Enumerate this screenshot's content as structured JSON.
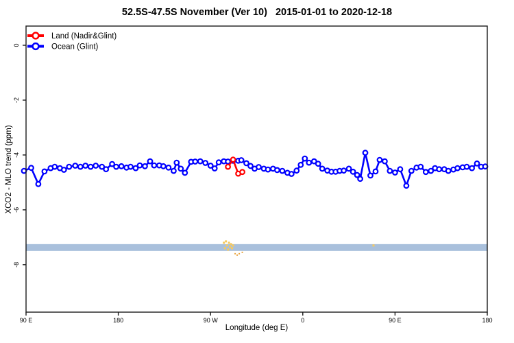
{
  "chart_data": {
    "type": "line",
    "title": "52.5S-47.5S November (Ver 10)   2015-01-01 to 2020-12-18",
    "xlabel": "Longitude (deg E)",
    "ylabel": "XCO2 - MLO trend (ppm)",
    "grid": "off",
    "frame": "full-box",
    "frame_color": "#1a1a1a",
    "x_axis": {
      "min": 90,
      "max": 540,
      "ticks": [
        {
          "deg": 90,
          "label": "90 E"
        },
        {
          "deg": 180,
          "label": "180"
        },
        {
          "deg": 270,
          "label": "90 W"
        },
        {
          "deg": 360,
          "label": "0"
        },
        {
          "deg": 450,
          "label": "90 E"
        },
        {
          "deg": 540,
          "label": "180"
        }
      ]
    },
    "y_axis": {
      "top": 0.7,
      "bottom": -9.73,
      "ticks": [
        {
          "val": 0,
          "label": "0"
        },
        {
          "val": -2,
          "label": "-2"
        },
        {
          "val": -4,
          "label": "-4"
        },
        {
          "val": -6,
          "label": "-6"
        },
        {
          "val": -8,
          "label": "-8"
        }
      ]
    },
    "legend": {
      "position": "top-left-inside",
      "items": [
        {
          "label": "Land (Nadir&Glint)",
          "color": "#ff0000",
          "marker": "open-circle-on-line"
        },
        {
          "label": "Ocean (Glint)",
          "color": "#0000ff",
          "marker": "open-circle-on-line"
        }
      ]
    },
    "series": [
      {
        "name": "Ocean (Glint)",
        "color": "#0000ff",
        "marker": "open-circle",
        "points": [
          [
            88,
            -4.58
          ],
          [
            95,
            -4.47
          ],
          [
            102,
            -5.06
          ],
          [
            108,
            -4.6
          ],
          [
            114,
            -4.48
          ],
          [
            118,
            -4.43
          ],
          [
            123,
            -4.48
          ],
          [
            127,
            -4.54
          ],
          [
            132,
            -4.43
          ],
          [
            138,
            -4.39
          ],
          [
            143,
            -4.43
          ],
          [
            148,
            -4.39
          ],
          [
            153,
            -4.43
          ],
          [
            158,
            -4.39
          ],
          [
            164,
            -4.43
          ],
          [
            168,
            -4.52
          ],
          [
            174,
            -4.33
          ],
          [
            178,
            -4.43
          ],
          [
            183,
            -4.41
          ],
          [
            188,
            -4.46
          ],
          [
            192,
            -4.43
          ],
          [
            197,
            -4.48
          ],
          [
            201,
            -4.38
          ],
          [
            206,
            -4.41
          ],
          [
            211,
            -4.23
          ],
          [
            215,
            -4.38
          ],
          [
            220,
            -4.38
          ],
          [
            224,
            -4.41
          ],
          [
            229,
            -4.46
          ],
          [
            234,
            -4.58
          ],
          [
            237,
            -4.28
          ],
          [
            241,
            -4.5
          ],
          [
            245,
            -4.65
          ],
          [
            251,
            -4.25
          ],
          [
            255,
            -4.24
          ],
          [
            260,
            -4.23
          ],
          [
            265,
            -4.29
          ],
          [
            270,
            -4.39
          ],
          [
            274,
            -4.49
          ],
          [
            278,
            -4.27
          ],
          [
            283,
            -4.23
          ],
          [
            287,
            -4.24
          ],
          [
            292,
            -4.21
          ],
          [
            297,
            -4.21
          ],
          [
            300,
            -4.19
          ],
          [
            305,
            -4.3
          ],
          [
            309,
            -4.4
          ],
          [
            313,
            -4.5
          ],
          [
            317,
            -4.44
          ],
          [
            322,
            -4.5
          ],
          [
            326,
            -4.53
          ],
          [
            331,
            -4.5
          ],
          [
            335,
            -4.55
          ],
          [
            340,
            -4.58
          ],
          [
            345,
            -4.65
          ],
          [
            349,
            -4.69
          ],
          [
            354,
            -4.57
          ],
          [
            358,
            -4.36
          ],
          [
            362,
            -4.13
          ],
          [
            366,
            -4.28
          ],
          [
            371,
            -4.23
          ],
          [
            375,
            -4.32
          ],
          [
            379,
            -4.5
          ],
          [
            384,
            -4.57
          ],
          [
            388,
            -4.61
          ],
          [
            392,
            -4.61
          ],
          [
            396,
            -4.58
          ],
          [
            400,
            -4.57
          ],
          [
            405,
            -4.5
          ],
          [
            409,
            -4.61
          ],
          [
            413,
            -4.73
          ],
          [
            416,
            -4.87
          ],
          [
            421,
            -3.92
          ],
          [
            426,
            -4.75
          ],
          [
            431,
            -4.6
          ],
          [
            435,
            -4.18
          ],
          [
            440,
            -4.23
          ],
          [
            445,
            -4.58
          ],
          [
            450,
            -4.64
          ],
          [
            455,
            -4.52
          ],
          [
            461,
            -5.12
          ],
          [
            466,
            -4.58
          ],
          [
            471,
            -4.46
          ],
          [
            475,
            -4.43
          ],
          [
            480,
            -4.62
          ],
          [
            485,
            -4.58
          ],
          [
            489,
            -4.48
          ],
          [
            493,
            -4.52
          ],
          [
            498,
            -4.52
          ],
          [
            502,
            -4.58
          ],
          [
            507,
            -4.53
          ],
          [
            511,
            -4.48
          ],
          [
            516,
            -4.45
          ],
          [
            520,
            -4.43
          ],
          [
            525,
            -4.48
          ],
          [
            530,
            -4.31
          ],
          [
            534,
            -4.43
          ],
          [
            538,
            -4.42
          ]
        ]
      },
      {
        "name": "Land (Nadir&Glint)",
        "color": "#ff0000",
        "marker": "open-circle",
        "points": [
          [
            287,
            -4.43
          ],
          [
            292,
            -4.17
          ],
          [
            297,
            -4.68
          ],
          [
            301,
            -4.62
          ]
        ]
      }
    ],
    "coverage_band": {
      "color": "#a9c0dc",
      "deg_start": 90,
      "deg_end": 540,
      "val_top": -7.25,
      "val_bottom": -7.5
    },
    "coverage_marks": {
      "yellow_color": "#f7ca5e",
      "orange_color": "#e8a33d",
      "yellow_cluster": [
        [
          283,
          -7.2
        ],
        [
          284,
          -7.4
        ],
        [
          285,
          -7.15
        ],
        [
          286,
          -7.3
        ],
        [
          287,
          -7.45
        ],
        [
          288,
          -7.2
        ],
        [
          289,
          -7.35
        ],
        [
          290,
          -7.25
        ],
        [
          291,
          -7.4
        ],
        [
          292,
          -7.3
        ]
      ],
      "yellow_dot": [
        [
          429,
          -7.3
        ]
      ],
      "orange_dots": [
        [
          294,
          -7.6
        ],
        [
          296,
          -7.65
        ],
        [
          298,
          -7.6
        ],
        [
          301,
          -7.55
        ]
      ]
    }
  }
}
